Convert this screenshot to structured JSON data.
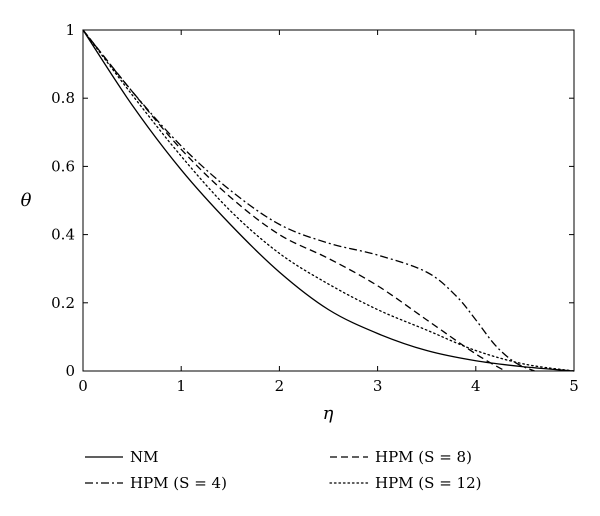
{
  "chart_data": {
    "type": "line",
    "title": "",
    "xlabel": "η",
    "ylabel": "θ",
    "xlim": [
      0,
      5
    ],
    "ylim": [
      0,
      1
    ],
    "xticks": [
      "0",
      "1",
      "2",
      "3",
      "4",
      "5"
    ],
    "yticks": [
      "0",
      "0.2",
      "0.4",
      "0.6",
      "0.8",
      "1"
    ],
    "grid": false,
    "legend_position": "bottom",
    "series": [
      {
        "name": "NM",
        "style": "solid",
        "x": [
          0,
          0.5,
          1.0,
          1.5,
          2.0,
          2.5,
          3.0,
          3.5,
          4.0,
          4.5,
          5.0
        ],
        "y": [
          1.0,
          0.78,
          0.59,
          0.43,
          0.29,
          0.18,
          0.11,
          0.06,
          0.03,
          0.012,
          0.0
        ]
      },
      {
        "name": "HPM (S = 4)",
        "style": "dashdot",
        "x": [
          0,
          0.5,
          1.0,
          1.5,
          2.0,
          2.5,
          3.0,
          3.5,
          3.8,
          4.0,
          4.2,
          4.4,
          4.6
        ],
        "y": [
          1.0,
          0.82,
          0.66,
          0.53,
          0.43,
          0.375,
          0.34,
          0.29,
          0.22,
          0.15,
          0.075,
          0.025,
          0.0
        ]
      },
      {
        "name": "HPM (S = 8)",
        "style": "dashed",
        "x": [
          0,
          0.5,
          1.0,
          1.5,
          2.0,
          2.5,
          3.0,
          3.5,
          4.0,
          4.3
        ],
        "y": [
          1.0,
          0.82,
          0.65,
          0.51,
          0.4,
          0.33,
          0.25,
          0.15,
          0.05,
          0.0
        ]
      },
      {
        "name": "HPM (S = 12)",
        "style": "dotted",
        "x": [
          0,
          0.5,
          1.0,
          1.5,
          2.0,
          2.5,
          3.0,
          3.5,
          4.0,
          4.5,
          5.0
        ],
        "y": [
          1.0,
          0.81,
          0.63,
          0.47,
          0.345,
          0.255,
          0.18,
          0.12,
          0.06,
          0.02,
          0.0
        ]
      }
    ]
  }
}
